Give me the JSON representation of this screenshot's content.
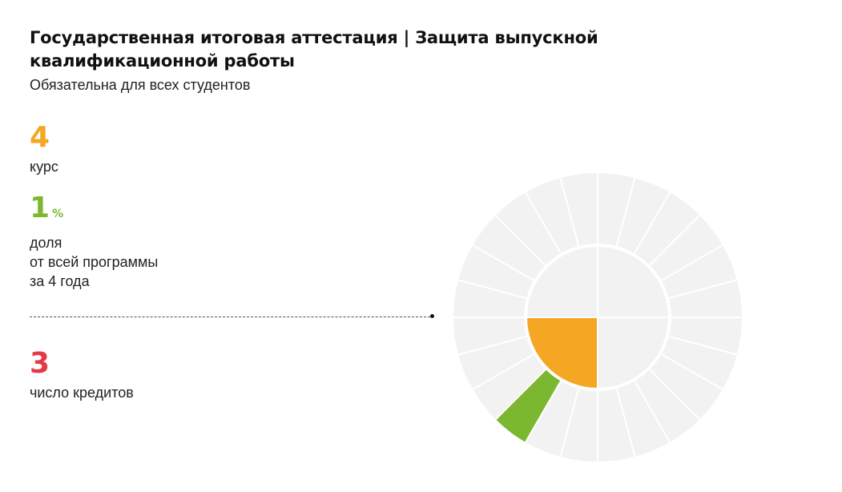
{
  "header": {
    "title": "Государственная итоговая аттестация | Защита выпускной квалификационной работы",
    "subtitle": "Обязательна для всех студентов"
  },
  "stats": {
    "course": {
      "value": "4",
      "label": "курс",
      "color": "#f5a623"
    },
    "share": {
      "value": "1",
      "unit": "%",
      "label": "доля\nот всей программы\nза 4 года",
      "color": "#7cb82f"
    },
    "credits": {
      "value": "3",
      "label": "число кредитов",
      "color": "#e63946"
    }
  },
  "chart_data": {
    "type": "pie",
    "rings": [
      {
        "name": "",
        "segments": 4,
        "highlighted": [
          2
        ],
        "highlight_color": "#f5a623"
      },
      {
        "name": "",
        "segments": 24,
        "highlighted": [
          14
        ],
        "highlight_color": "#7cb82f"
      }
    ],
    "base_color": "#f2f2f2",
    "separator_color": "#ffffff"
  }
}
